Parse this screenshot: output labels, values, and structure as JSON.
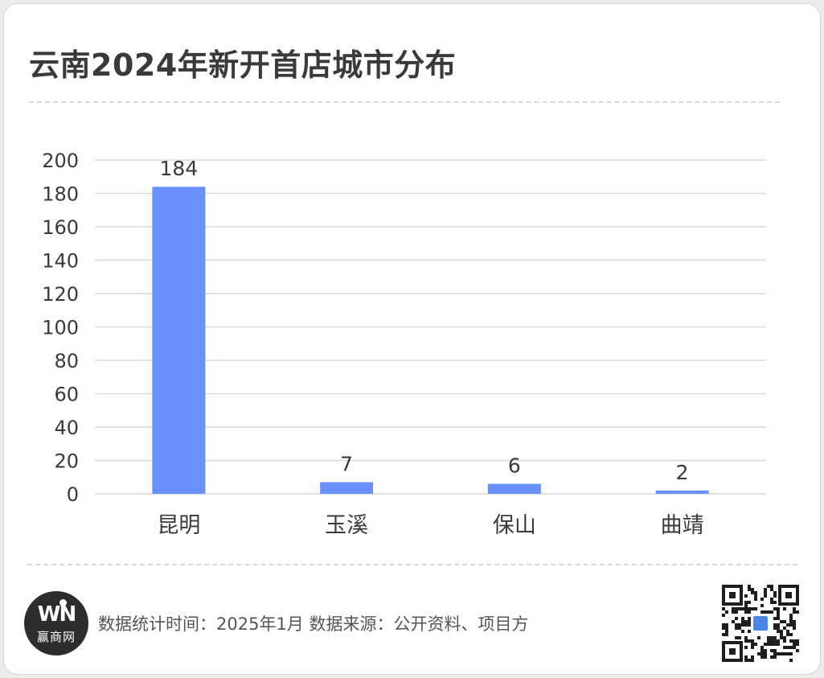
{
  "title": "云南2024年新开首店城市分布",
  "chart_data": {
    "type": "bar",
    "categories": [
      "昆明",
      "玉溪",
      "保山",
      "曲靖"
    ],
    "values": [
      184,
      7,
      6,
      2
    ],
    "data_labels": [
      "184",
      "7",
      "6",
      "2"
    ],
    "title": "",
    "xlabel": "",
    "ylabel": "",
    "ylim": [
      0,
      200
    ],
    "yticks": [
      0,
      20,
      40,
      60,
      80,
      100,
      120,
      140,
      160,
      180,
      200
    ],
    "grid": true,
    "legend": "none",
    "bar_color": "#6a91fb"
  },
  "footer": {
    "source": "数据统计时间：2025年1月 数据来源：公开资料、项目方",
    "logo_mark": "WN",
    "logo_text": "赢商网",
    "qr_icon": "qr-code-icon"
  },
  "colors": {
    "bar": "#6a91fb",
    "grid": "#d9d9d9",
    "text": "#3a3a3a"
  }
}
